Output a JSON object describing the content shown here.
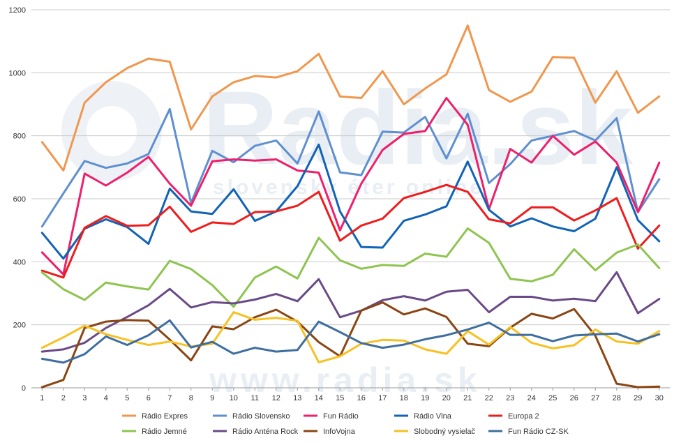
{
  "chart_data": {
    "type": "line",
    "x": [
      1,
      2,
      3,
      4,
      5,
      6,
      7,
      8,
      9,
      10,
      11,
      12,
      13,
      14,
      15,
      16,
      17,
      18,
      19,
      20,
      21,
      22,
      23,
      24,
      25,
      26,
      27,
      28,
      29,
      30
    ],
    "ylim": [
      0,
      1200
    ],
    "yticks": [
      0,
      200,
      400,
      600,
      800,
      1000,
      1200
    ],
    "grid": true,
    "legend_position": "bottom",
    "watermark": "Radia.sk",
    "watermark_subtitle": "slovenský éter online",
    "watermark_bottom": "www.radia.sk",
    "series": [
      {
        "name": "Rádio Expres",
        "color": "#f0974e",
        "values": [
          780,
          690,
          905,
          970,
          1015,
          1045,
          1035,
          820,
          925,
          970,
          990,
          985,
          1005,
          1060,
          925,
          920,
          1005,
          900,
          950,
          995,
          1150,
          945,
          908,
          940,
          1050,
          1048,
          905,
          1005,
          873,
          925
        ]
      },
      {
        "name": "Rádio Slovensko",
        "color": "#5e8fd0",
        "values": [
          512,
          617,
          720,
          698,
          712,
          742,
          885,
          587,
          752,
          716,
          768,
          785,
          712,
          877,
          684,
          675,
          813,
          810,
          860,
          728,
          870,
          650,
          710,
          785,
          800,
          815,
          785,
          856,
          558,
          662
        ]
      },
      {
        "name": "Fun Rádio",
        "color": "#ee1f6b",
        "values": [
          430,
          360,
          680,
          642,
          683,
          733,
          648,
          578,
          719,
          725,
          721,
          725,
          690,
          683,
          500,
          648,
          755,
          806,
          815,
          920,
          835,
          567,
          758,
          715,
          800,
          740,
          782,
          715,
          558,
          715
        ]
      },
      {
        "name": "Rádio Vlna",
        "color": "#1063b6",
        "values": [
          492,
          410,
          505,
          535,
          510,
          457,
          632,
          560,
          552,
          630,
          530,
          560,
          640,
          772,
          560,
          447,
          445,
          530,
          550,
          576,
          718,
          565,
          512,
          538,
          512,
          497,
          537,
          700,
          532,
          465
        ]
      },
      {
        "name": "Europa 2",
        "color": "#ee1c1c",
        "values": [
          372,
          350,
          508,
          545,
          514,
          516,
          575,
          495,
          525,
          520,
          558,
          560,
          578,
          622,
          467,
          515,
          537,
          602,
          622,
          644,
          622,
          535,
          522,
          573,
          573,
          531,
          563,
          602,
          442,
          515
        ]
      },
      {
        "name": "Rádio Jemné",
        "color": "#8ec44f",
        "values": [
          366,
          313,
          279,
          334,
          322,
          312,
          403,
          377,
          326,
          257,
          350,
          385,
          347,
          476,
          405,
          378,
          390,
          387,
          426,
          416,
          506,
          460,
          346,
          338,
          359,
          440,
          373,
          429,
          455,
          380
        ]
      },
      {
        "name": "Rádio Anténa Rock",
        "color": "#6a4a86",
        "values": [
          115,
          122,
          143,
          190,
          225,
          262,
          314,
          255,
          272,
          268,
          280,
          298,
          275,
          345,
          224,
          245,
          278,
          291,
          277,
          305,
          311,
          240,
          289,
          289,
          277,
          283,
          275,
          367,
          237,
          282
        ]
      },
      {
        "name": "InfoVojna",
        "color": "#8a4512",
        "values": [
          2,
          25,
          190,
          210,
          215,
          213,
          153,
          87,
          195,
          186,
          224,
          248,
          210,
          145,
          100,
          245,
          271,
          233,
          252,
          225,
          140,
          132,
          191,
          235,
          220,
          250,
          165,
          13,
          2,
          4
        ]
      },
      {
        "name": "Slobodný vysielač",
        "color": "#f7c122",
        "values": [
          127,
          160,
          197,
          170,
          152,
          136,
          147,
          131,
          140,
          240,
          216,
          222,
          213,
          81,
          100,
          140,
          152,
          150,
          122,
          108,
          180,
          137,
          193,
          143,
          125,
          135,
          185,
          147,
          140,
          180
        ]
      },
      {
        "name": "Fun Rádio CZ-SK",
        "color": "#3e6e9f",
        "values": [
          92,
          80,
          107,
          163,
          136,
          167,
          214,
          128,
          146,
          108,
          127,
          115,
          120,
          210,
          177,
          142,
          127,
          137,
          154,
          167,
          185,
          207,
          168,
          168,
          148,
          166,
          170,
          172,
          147,
          170
        ]
      }
    ]
  }
}
